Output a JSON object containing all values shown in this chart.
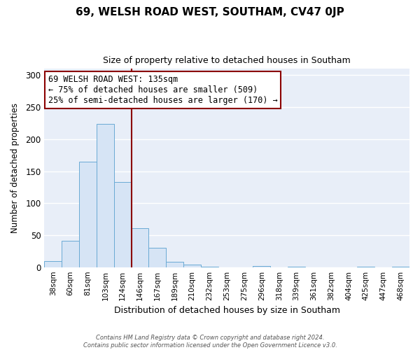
{
  "title": "69, WELSH ROAD WEST, SOUTHAM, CV47 0JP",
  "subtitle": "Size of property relative to detached houses in Southam",
  "xlabel": "Distribution of detached houses by size in Southam",
  "ylabel": "Number of detached properties",
  "bar_labels": [
    "38sqm",
    "60sqm",
    "81sqm",
    "103sqm",
    "124sqm",
    "146sqm",
    "167sqm",
    "189sqm",
    "210sqm",
    "232sqm",
    "253sqm",
    "275sqm",
    "296sqm",
    "318sqm",
    "339sqm",
    "361sqm",
    "382sqm",
    "404sqm",
    "425sqm",
    "447sqm",
    "468sqm"
  ],
  "bar_values": [
    10,
    41,
    165,
    224,
    133,
    61,
    30,
    8,
    4,
    1,
    0,
    0,
    2,
    0,
    1,
    0,
    0,
    0,
    1,
    0,
    1
  ],
  "bar_color": "#d6e4f5",
  "bar_edge_color": "#6aaad4",
  "annotation_title": "69 WELSH ROAD WEST: 135sqm",
  "annotation_line1": "← 75% of detached houses are smaller (509)",
  "annotation_line2": "25% of semi-detached houses are larger (170) →",
  "property_line_x": 4.5,
  "vline_color": "#8b0000",
  "annotation_box_color": "#ffffff",
  "annotation_box_edge": "#8b0000",
  "ylim": [
    0,
    310
  ],
  "yticks": [
    0,
    50,
    100,
    150,
    200,
    250,
    300
  ],
  "footer_line1": "Contains HM Land Registry data © Crown copyright and database right 2024.",
  "footer_line2": "Contains public sector information licensed under the Open Government Licence v3.0.",
  "bg_color": "#ffffff",
  "plot_bg_color": "#e8eef8",
  "grid_color": "#ffffff",
  "title_fontsize": 11,
  "subtitle_fontsize": 9
}
